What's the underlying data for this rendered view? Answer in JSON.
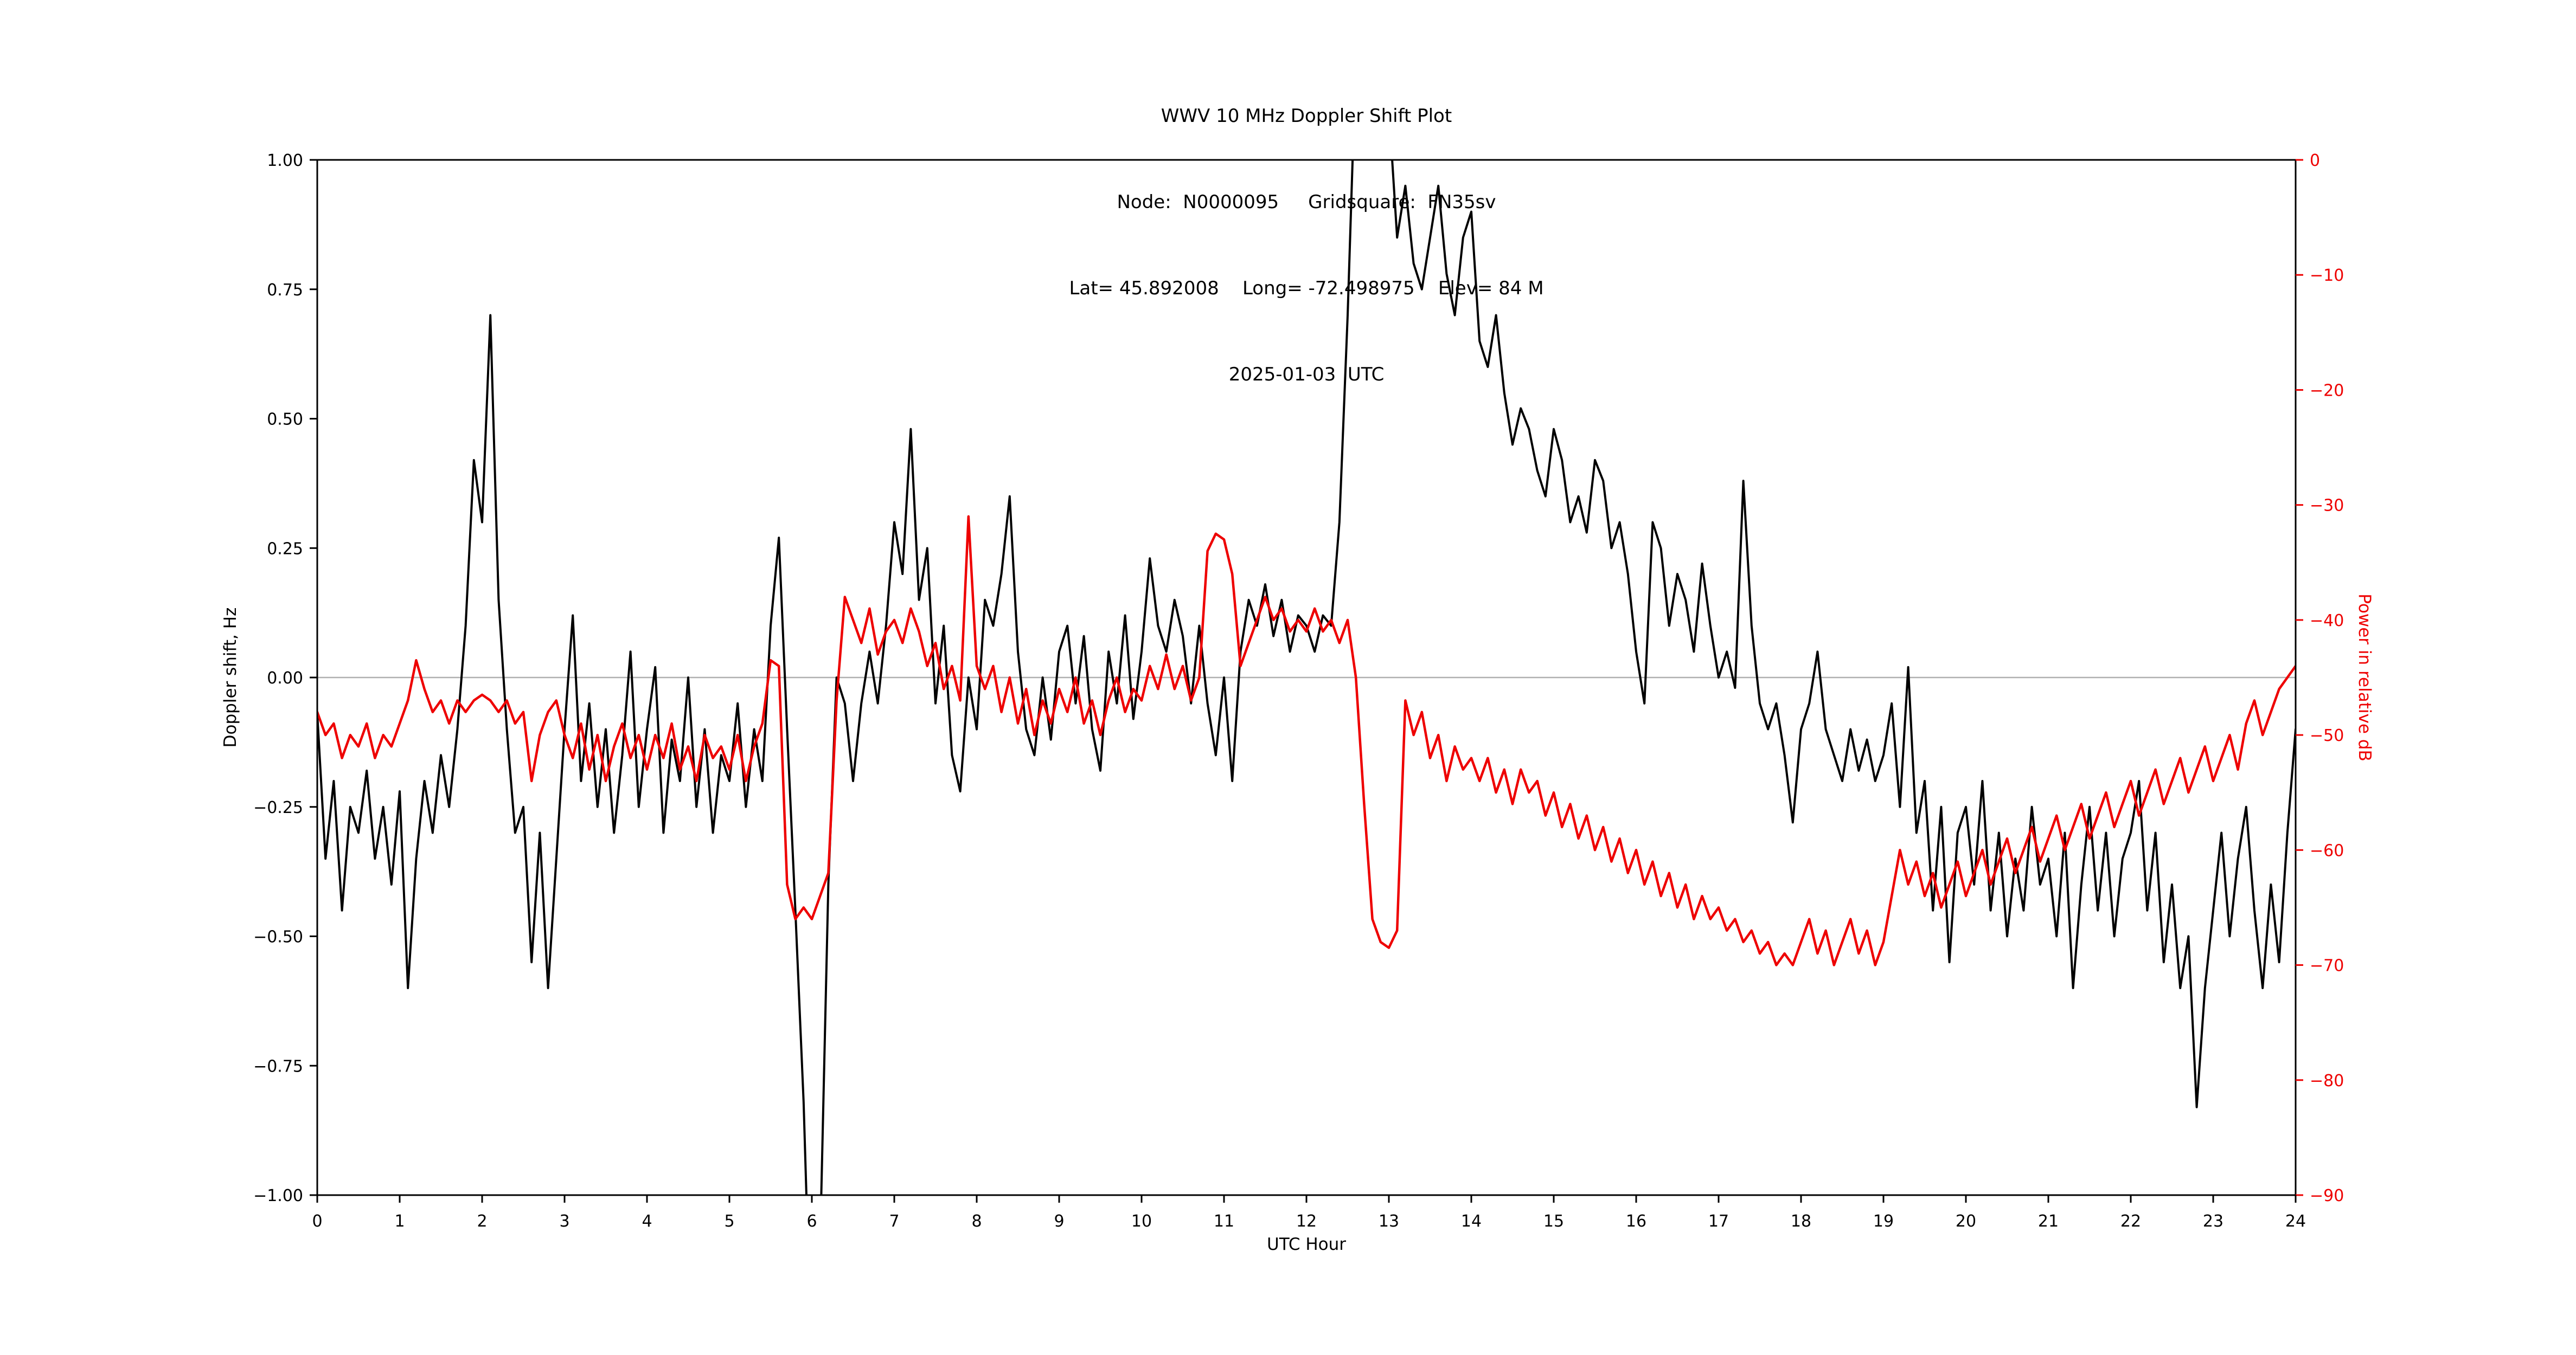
{
  "title": {
    "line1": "WWV 10 MHz Doppler Shift Plot",
    "line2": "Node:  N0000095     Gridsquare:  FN35sv",
    "line3": "Lat= 45.892008    Long= -72.498975    Elev= 84 M",
    "line4": "2025-01-03  UTC"
  },
  "axes": {
    "x_label": "UTC Hour",
    "left_label": "Doppler shift, Hz",
    "right_label": "Power in relative dB",
    "x_ticks": {
      "values": [
        0,
        1,
        2,
        3,
        4,
        5,
        6,
        7,
        8,
        9,
        10,
        11,
        12,
        13,
        14,
        15,
        16,
        17,
        18,
        19,
        20,
        21,
        22,
        23,
        24
      ],
      "labels": [
        "0",
        "1",
        "2",
        "3",
        "4",
        "5",
        "6",
        "7",
        "8",
        "9",
        "10",
        "11",
        "12",
        "13",
        "14",
        "15",
        "16",
        "17",
        "18",
        "19",
        "20",
        "21",
        "22",
        "23",
        "24"
      ]
    },
    "left_ticks": {
      "values": [
        1.0,
        0.75,
        0.5,
        0.25,
        0.0,
        -0.25,
        -0.5,
        -0.75,
        -1.0
      ],
      "labels": [
        "1.00",
        "0.75",
        "0.50",
        "0.25",
        "0.00",
        "−0.25",
        "−0.50",
        "−0.75",
        "−1.00"
      ]
    },
    "right_ticks": {
      "values": [
        0,
        -10,
        -20,
        -30,
        -40,
        -50,
        -60,
        -70,
        -80,
        -90
      ],
      "labels": [
        "0",
        "−10",
        "−20",
        "−30",
        "−40",
        "−50",
        "−60",
        "−70",
        "−80",
        "−90"
      ]
    }
  },
  "colors": {
    "doppler": "#000000",
    "power": "#ee0000",
    "zero_line": "#b0b0b0",
    "spine": "#000000"
  },
  "chart_data": {
    "type": "line",
    "title": "WWV 10 MHz Doppler Shift Plot",
    "xlabel": "UTC Hour",
    "ylabel_left": "Doppler shift, Hz",
    "ylabel_right": "Power in relative dB",
    "xlim": [
      0,
      24
    ],
    "ylim_left": [
      -1.0,
      1.0
    ],
    "ylim_right": [
      -90,
      0
    ],
    "grid": "horizontal zero line only",
    "legend": "none",
    "x_start": 0,
    "x_step": 0.1,
    "series": [
      {
        "name": "doppler_shift_hz",
        "axis": "left",
        "color_key": "doppler",
        "values": [
          -0.07,
          -0.35,
          -0.2,
          -0.45,
          -0.25,
          -0.3,
          -0.18,
          -0.35,
          -0.25,
          -0.4,
          -0.22,
          -0.6,
          -0.35,
          -0.2,
          -0.3,
          -0.15,
          -0.25,
          -0.1,
          0.1,
          0.42,
          0.3,
          0.7,
          0.15,
          -0.1,
          -0.3,
          -0.25,
          -0.55,
          -0.3,
          -0.6,
          -0.35,
          -0.1,
          0.12,
          -0.2,
          -0.05,
          -0.25,
          -0.1,
          -0.3,
          -0.15,
          0.05,
          -0.25,
          -0.1,
          0.02,
          -0.3,
          -0.12,
          -0.2,
          0.0,
          -0.25,
          -0.1,
          -0.3,
          -0.15,
          -0.2,
          -0.05,
          -0.25,
          -0.1,
          -0.2,
          0.1,
          0.27,
          -0.1,
          -0.45,
          -0.82,
          -1.35,
          -1.1,
          -0.4,
          0.0,
          -0.05,
          -0.2,
          -0.05,
          0.05,
          -0.05,
          0.1,
          0.3,
          0.2,
          0.48,
          0.15,
          0.25,
          -0.05,
          0.1,
          -0.15,
          -0.22,
          0.0,
          -0.1,
          0.15,
          0.1,
          0.2,
          0.35,
          0.05,
          -0.1,
          -0.15,
          0.0,
          -0.12,
          0.05,
          0.1,
          -0.05,
          0.08,
          -0.1,
          -0.18,
          0.05,
          -0.05,
          0.12,
          -0.08,
          0.05,
          0.23,
          0.1,
          0.05,
          0.15,
          0.08,
          -0.05,
          0.1,
          -0.05,
          -0.15,
          0.0,
          -0.2,
          0.05,
          0.15,
          0.1,
          0.18,
          0.08,
          0.15,
          0.05,
          0.12,
          0.1,
          0.05,
          0.12,
          0.1,
          0.3,
          0.7,
          1.2,
          1.5,
          1.4,
          1.3,
          1.1,
          0.85,
          0.95,
          0.8,
          0.75,
          0.85,
          0.95,
          0.78,
          0.7,
          0.85,
          0.9,
          0.65,
          0.6,
          0.7,
          0.55,
          0.45,
          0.52,
          0.48,
          0.4,
          0.35,
          0.48,
          0.42,
          0.3,
          0.35,
          0.28,
          0.42,
          0.38,
          0.25,
          0.3,
          0.2,
          0.05,
          -0.05,
          0.3,
          0.25,
          0.1,
          0.2,
          0.15,
          0.05,
          0.22,
          0.1,
          0.0,
          0.05,
          -0.02,
          0.38,
          0.1,
          -0.05,
          -0.1,
          -0.05,
          -0.15,
          -0.28,
          -0.1,
          -0.05,
          0.05,
          -0.1,
          -0.15,
          -0.2,
          -0.1,
          -0.18,
          -0.12,
          -0.2,
          -0.15,
          -0.05,
          -0.25,
          0.02,
          -0.3,
          -0.2,
          -0.45,
          -0.25,
          -0.55,
          -0.3,
          -0.25,
          -0.4,
          -0.2,
          -0.45,
          -0.3,
          -0.5,
          -0.35,
          -0.45,
          -0.25,
          -0.4,
          -0.35,
          -0.5,
          -0.3,
          -0.6,
          -0.4,
          -0.25,
          -0.45,
          -0.3,
          -0.5,
          -0.35,
          -0.3,
          -0.2,
          -0.45,
          -0.3,
          -0.55,
          -0.4,
          -0.6,
          -0.5,
          -0.83,
          -0.6,
          -0.45,
          -0.3,
          -0.5,
          -0.35,
          -0.25,
          -0.45,
          -0.6,
          -0.4,
          -0.55,
          -0.3,
          -0.1
        ]
      },
      {
        "name": "power_relative_db",
        "axis": "right",
        "color_key": "power",
        "values": [
          -48,
          -50,
          -49,
          -52,
          -50,
          -51,
          -49,
          -52,
          -50,
          -51,
          -49,
          -47,
          -43.5,
          -46,
          -48,
          -47,
          -49,
          -47,
          -48,
          -47,
          -46.5,
          -47,
          -48,
          -47,
          -49,
          -48,
          -54,
          -50,
          -48,
          -47,
          -50,
          -52,
          -49,
          -53,
          -50,
          -54,
          -51,
          -49,
          -52,
          -50,
          -53,
          -50,
          -52,
          -49,
          -53,
          -51,
          -54,
          -50,
          -52,
          -51,
          -53,
          -50,
          -54,
          -51,
          -49,
          -43.5,
          -44,
          -63,
          -66,
          -65,
          -66,
          -64,
          -62,
          -47,
          -38,
          -40,
          -42,
          -39,
          -43,
          -41,
          -40,
          -42,
          -39,
          -41,
          -44,
          -42,
          -46,
          -44,
          -47,
          -31,
          -44,
          -46,
          -44,
          -48,
          -45,
          -49,
          -46,
          -50,
          -47,
          -49,
          -46,
          -48,
          -45,
          -49,
          -47,
          -50,
          -47,
          -45,
          -48,
          -46,
          -47,
          -44,
          -46,
          -43,
          -46,
          -44,
          -47,
          -45,
          -34,
          -32.5,
          -33,
          -36,
          -44,
          -42,
          -40,
          -38,
          -40,
          -39,
          -41,
          -40,
          -41,
          -39,
          -41,
          -40,
          -42,
          -40,
          -45,
          -56,
          -66,
          -68,
          -68.5,
          -67,
          -47,
          -50,
          -48,
          -52,
          -50,
          -54,
          -51,
          -53,
          -52,
          -54,
          -52,
          -55,
          -53,
          -56,
          -53,
          -55,
          -54,
          -57,
          -55,
          -58,
          -56,
          -59,
          -57,
          -60,
          -58,
          -61,
          -59,
          -62,
          -60,
          -63,
          -61,
          -64,
          -62,
          -65,
          -63,
          -66,
          -64,
          -66,
          -65,
          -67,
          -66,
          -68,
          -67,
          -69,
          -68,
          -70,
          -69,
          -70,
          -68,
          -66,
          -69,
          -67,
          -70,
          -68,
          -66,
          -69,
          -67,
          -70,
          -68,
          -64,
          -60,
          -63,
          -61,
          -64,
          -62,
          -65,
          -63,
          -61,
          -64,
          -62,
          -60,
          -63,
          -61,
          -59,
          -62,
          -60,
          -58,
          -61,
          -59,
          -57,
          -60,
          -58,
          -56,
          -59,
          -57,
          -55,
          -58,
          -56,
          -54,
          -57,
          -55,
          -53,
          -56,
          -54,
          -52,
          -55,
          -53,
          -51,
          -54,
          -52,
          -50,
          -53,
          -49,
          -47,
          -50,
          -48,
          -46,
          -45,
          -44
        ]
      }
    ]
  }
}
